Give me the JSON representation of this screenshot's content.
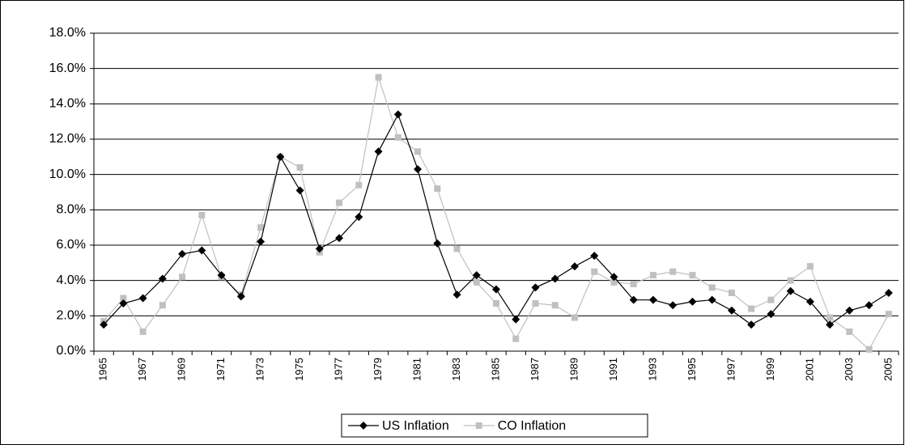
{
  "chart_data": {
    "type": "line",
    "categories": [
      "1965",
      null,
      "1967",
      null,
      "1969",
      null,
      "1971",
      null,
      "1973",
      null,
      "1975",
      null,
      "1977",
      null,
      "1979",
      null,
      "1981",
      null,
      "1983",
      null,
      "1985",
      null,
      "1987",
      null,
      "1989",
      null,
      "1991",
      null,
      "1993",
      null,
      "1995",
      null,
      "1997",
      null,
      "1999",
      null,
      "2001",
      null,
      "2003",
      null,
      "2005"
    ],
    "series": [
      {
        "name": "US Inflation",
        "color": "#000000",
        "marker": "diamond",
        "values": [
          1.5,
          2.7,
          3.0,
          4.1,
          5.5,
          5.7,
          4.3,
          3.1,
          6.2,
          11.0,
          9.1,
          5.8,
          6.4,
          7.6,
          11.3,
          13.4,
          10.3,
          6.1,
          3.2,
          4.3,
          3.5,
          1.8,
          3.6,
          4.1,
          4.8,
          5.4,
          4.2,
          2.9,
          2.9,
          2.6,
          2.8,
          2.9,
          2.3,
          1.5,
          2.1,
          3.4,
          2.8,
          1.5,
          2.3,
          2.6,
          3.3
        ]
      },
      {
        "name": "CO Inflation",
        "color": "#c0c0c0",
        "marker": "square",
        "values": [
          1.7,
          3.0,
          1.1,
          2.6,
          4.2,
          7.7,
          4.2,
          3.2,
          7.0,
          11.0,
          10.4,
          5.6,
          8.4,
          9.4,
          15.5,
          12.1,
          11.3,
          9.2,
          5.8,
          3.9,
          2.7,
          0.7,
          2.7,
          2.6,
          1.9,
          4.5,
          3.9,
          3.8,
          4.3,
          4.5,
          4.3,
          3.6,
          3.3,
          2.4,
          2.9,
          4.0,
          4.8,
          1.9,
          1.1,
          0.1,
          2.1
        ]
      }
    ],
    "ylim": [
      0,
      18
    ],
    "yticks": [
      {
        "value": 0,
        "label": "0.0%"
      },
      {
        "value": 2,
        "label": "2.0%"
      },
      {
        "value": 4,
        "label": "4.0%"
      },
      {
        "value": 6,
        "label": "6.0%"
      },
      {
        "value": 8,
        "label": "8.0%"
      },
      {
        "value": 10,
        "label": "10.0%"
      },
      {
        "value": 12,
        "label": "12.0%"
      },
      {
        "value": 14,
        "label": "14.0%"
      },
      {
        "value": 16,
        "label": "16.0%"
      },
      {
        "value": 18,
        "label": "18.0%"
      }
    ],
    "grid": true,
    "legend": "bottom"
  }
}
